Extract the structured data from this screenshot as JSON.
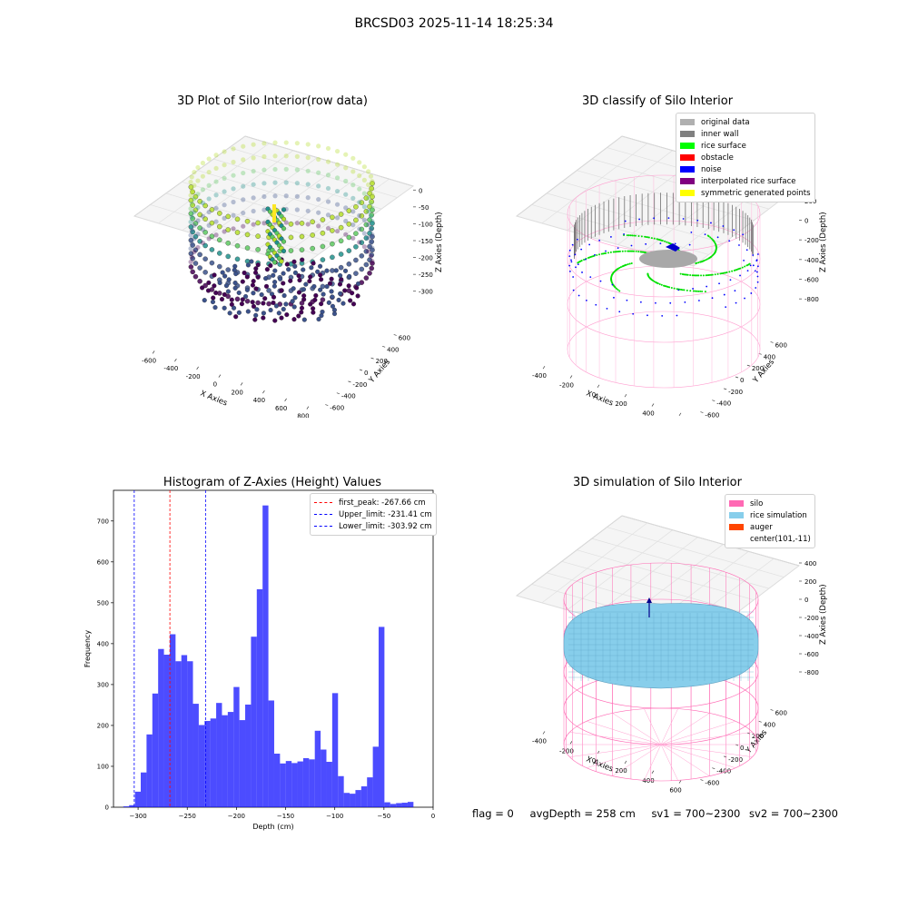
{
  "suptitle": "BRCSD03 2025-11-14 18:25:34",
  "panels": {
    "p1": {
      "title": "3D Plot of Silo Interior(row data)",
      "xlabel": "X Axies",
      "ylabel": "Y Axies",
      "zlabel": "Z Axies (Depth)",
      "xticks": [
        "-600",
        "-400",
        "-200",
        "0",
        "200",
        "400",
        "600",
        "800"
      ],
      "yticks": [
        "-600",
        "-400",
        "-200",
        "0",
        "200",
        "400",
        "600"
      ],
      "zticks": [
        "0",
        "-50",
        "-100",
        "-150",
        "-200",
        "-250",
        "-300"
      ]
    },
    "p2": {
      "title": "3D classify of Silo Interior",
      "xlabel": "X Axies",
      "ylabel": "Y Axies",
      "zlabel": "Z Axies (Depth)",
      "xticks": [
        "-400",
        "-200",
        "0",
        "200",
        "400",
        "600"
      ],
      "yticks": [
        "-600",
        "-400",
        "-200",
        "0",
        "200",
        "400",
        "600"
      ],
      "zticks": [
        "200",
        "0",
        "-200",
        "-400",
        "-600",
        "-800"
      ]
    },
    "p4": {
      "title": "3D simulation of Silo Interior",
      "xlabel": "X Axies",
      "ylabel": "Y Axies",
      "zlabel": "Z Axies (Depth)",
      "xticks": [
        "-400",
        "-200",
        "0",
        "200",
        "400",
        "600"
      ],
      "yticks": [
        "-600",
        "-400",
        "-200",
        "0",
        "200",
        "400",
        "600"
      ],
      "zticks": [
        "400",
        "200",
        "0",
        "-200",
        "-400",
        "-600",
        "-800"
      ]
    }
  },
  "legend2": [
    {
      "label": "original data",
      "color": "#b0b0b0"
    },
    {
      "label": "inner wall",
      "color": "#808080"
    },
    {
      "label": "rice surface",
      "color": "#00ff00"
    },
    {
      "label": "obstacle",
      "color": "#ff0000"
    },
    {
      "label": "noise",
      "color": "#0000ff"
    },
    {
      "label": "interpolated rice surface",
      "color": "#800080"
    },
    {
      "label": "symmetric generated points",
      "color": "#ffff00"
    }
  ],
  "legend4": [
    {
      "label": "silo",
      "color": "#ff69b4"
    },
    {
      "label": "rice simulation",
      "color": "#87ceeb"
    },
    {
      "label": "auger",
      "color": "#ff4500"
    },
    {
      "label": "center(101,-11)",
      "color": "#ffffff"
    }
  ],
  "colors": {
    "hist": "#0000ff",
    "first_peak": "#ff0000",
    "limits": "#0000ff"
  },
  "chart_data": {
    "type": "bar",
    "title": "Histogram of Z-Axies (Height) Values",
    "xlabel": "Depth (cm)",
    "ylabel": "Frequency",
    "xlim": [
      -325,
      0
    ],
    "ylim": [
      0,
      775
    ],
    "xticks": [
      -300,
      -250,
      -200,
      -150,
      -100,
      -50,
      0
    ],
    "yticks": [
      0,
      100,
      200,
      300,
      400,
      500,
      600,
      700
    ],
    "bin_start": -315,
    "bin_width": 5.9,
    "values": [
      2,
      5,
      38,
      85,
      178,
      278,
      387,
      373,
      423,
      357,
      372,
      357,
      253,
      201,
      211,
      217,
      255,
      225,
      233,
      294,
      213,
      251,
      417,
      533,
      738,
      261,
      131,
      107,
      113,
      108,
      112,
      120,
      117,
      187,
      141,
      111,
      279,
      76,
      35,
      33,
      42,
      51,
      73,
      148,
      441,
      12,
      8,
      10,
      11,
      13
    ],
    "vlines": [
      {
        "label": "first_peak: -267.66 cm",
        "x": -267.66,
        "color": "#ff0000"
      },
      {
        "label": "Upper_limit: -231.41 cm",
        "x": -231.41,
        "color": "#0000ff"
      },
      {
        "label": "Lower_limit: -303.92 cm",
        "x": -303.92,
        "color": "#0000ff"
      }
    ]
  },
  "footer": {
    "flag": "flag = 0",
    "avg": "avgDepth = 258 cm",
    "sv1": "sv1 = 700~2300",
    "sv2": "sv2 = 700~2300"
  }
}
